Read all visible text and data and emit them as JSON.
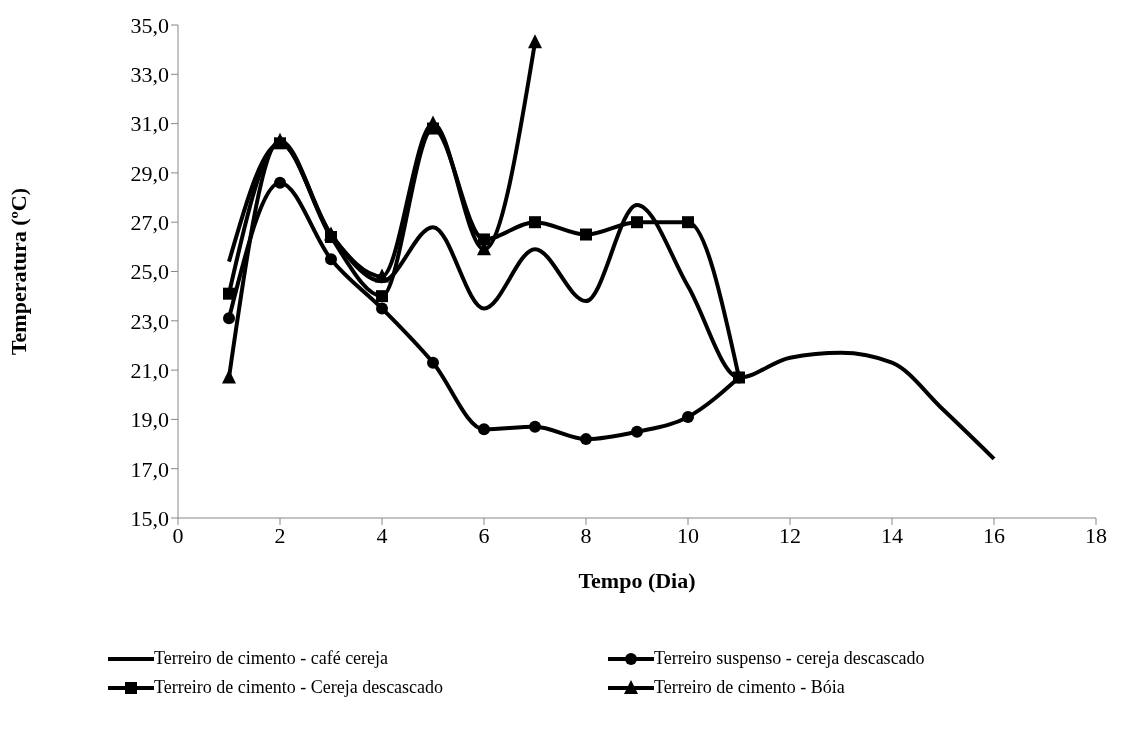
{
  "chart_data": {
    "type": "line",
    "xlabel": "Tempo (Dia)",
    "ylabel": "Temperatura (ºC)",
    "xlim": [
      0,
      18
    ],
    "xticks": [
      0,
      2,
      4,
      6,
      8,
      10,
      12,
      14,
      16,
      18
    ],
    "ylim": [
      15,
      35
    ],
    "yticks": [
      {
        "value": 15,
        "label": "15,0"
      },
      {
        "value": 17,
        "label": "17,0"
      },
      {
        "value": 19,
        "label": "19,0"
      },
      {
        "value": 21,
        "label": "21,0"
      },
      {
        "value": 23,
        "label": "23,0"
      },
      {
        "value": 25,
        "label": "25,0"
      },
      {
        "value": 27,
        "label": "27,0"
      },
      {
        "value": 29,
        "label": "29,0"
      },
      {
        "value": 31,
        "label": "31,0"
      },
      {
        "value": 33,
        "label": "33,0"
      },
      {
        "value": 35,
        "label": "35,0"
      }
    ],
    "legend": "bottom",
    "line_style": "solid",
    "series": [
      {
        "name": "Terreiro de cimento - café cereja",
        "color": "#000000",
        "marker": "none",
        "x": [
          1,
          2,
          3,
          4,
          5,
          6,
          7,
          8,
          9,
          10,
          11,
          12,
          13,
          14,
          15,
          16
        ],
        "values": [
          25.4,
          30.2,
          26.5,
          24.6,
          26.8,
          23.5,
          25.9,
          23.8,
          27.7,
          24.4,
          20.7,
          21.5,
          21.7,
          21.3,
          19.4,
          17.4
        ]
      },
      {
        "name": "Terreiro suspenso - cereja descascado",
        "color": "#000000",
        "marker": "circle",
        "x": [
          1,
          2,
          3,
          4,
          5,
          6,
          7,
          8,
          9,
          10,
          11
        ],
        "values": [
          23.1,
          28.6,
          25.5,
          23.5,
          21.3,
          18.6,
          18.7,
          18.2,
          18.5,
          19.1,
          20.7
        ]
      },
      {
        "name": "Terreiro de cimento - Cereja descascado",
        "color": "#000000",
        "marker": "square",
        "x": [
          1,
          2,
          3,
          4,
          5,
          6,
          7,
          8,
          9,
          10,
          11
        ],
        "values": [
          24.1,
          30.2,
          26.4,
          24.0,
          30.8,
          26.3,
          27.0,
          26.5,
          27.0,
          27.0,
          20.7
        ]
      },
      {
        "name": "Terreiro de cimento - Bóia",
        "color": "#000000",
        "marker": "triangle",
        "x": [
          1,
          2,
          3,
          4,
          5,
          6,
          7
        ],
        "values": [
          20.7,
          30.3,
          26.5,
          24.8,
          31.0,
          25.9,
          34.3
        ]
      }
    ]
  }
}
